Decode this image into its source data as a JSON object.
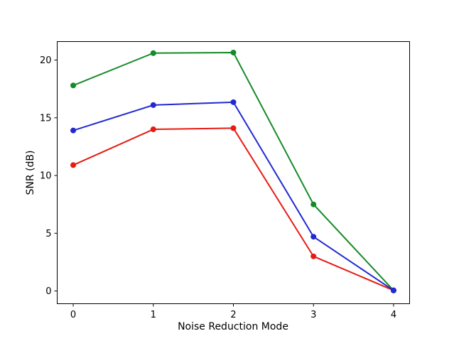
{
  "chart_data": {
    "type": "line",
    "title": "",
    "xlabel": "Noise Reduction Mode",
    "ylabel": "SNR (dB)",
    "x": [
      0,
      1,
      2,
      3,
      4
    ],
    "series": [
      {
        "name": "red",
        "color": "#e51c14",
        "values": [
          10.9,
          14.0,
          14.1,
          3.0,
          0.05
        ]
      },
      {
        "name": "green",
        "color": "#168a28",
        "values": [
          17.8,
          20.6,
          20.65,
          7.5,
          0.05
        ]
      },
      {
        "name": "blue",
        "color": "#2228d2",
        "values": [
          13.9,
          16.1,
          16.35,
          4.7,
          0.05
        ]
      }
    ],
    "xticks": [
      0,
      1,
      2,
      3,
      4
    ],
    "yticks": [
      0,
      5,
      10,
      15,
      20
    ],
    "xlim": [
      -0.2,
      4.2
    ],
    "ylim": [
      -1.1,
      21.6
    ],
    "grid": false,
    "legend": false,
    "marker": "circle",
    "line_width": 2,
    "marker_radius": 4,
    "background_color": "#ffffff",
    "axis_color": "#000000"
  }
}
